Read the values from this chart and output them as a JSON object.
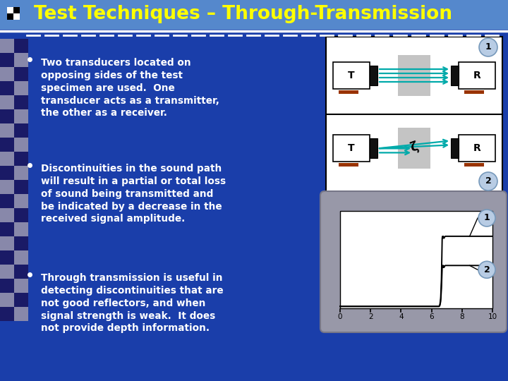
{
  "title": "Test Techniques – Through-Transmission",
  "title_color": "#FFFF00",
  "bg_color": "#1a3eaa",
  "bullet_points": [
    "Two transducers located on\nopposing sides of the test\nspecimen are used.  One\ntransducer acts as a transmitter,\nthe other as a receiver.",
    "Discontinuities in the sound path\nwill result in a partial or total loss\nof sound being transmitted and\nbe indicated by a decrease in the\nreceived signal amplitude.",
    "Through transmission is useful in\ndetecting discontinuities that are\nnot good reflectors, and when\nsignal strength is weak.  It does\nnot provide depth information."
  ],
  "top_bar_color": "#5588cc",
  "white_line_color": "#FFFFFF",
  "checker_dark": "#000066",
  "checker_light": "#8888aa",
  "diagram_bg": "#FFFFFF",
  "specimen_color": "#c0c0c0",
  "transducer_color": "#111111",
  "wire_color": "#882200",
  "arrow_color": "#00aaaa",
  "graph_bg": "#a8a8b8",
  "graph_plot_bg": "#FFFFFF",
  "graph_line_color": "#000000",
  "graph_ticks": [
    0,
    2,
    4,
    6,
    8,
    10
  ],
  "circle_fill": "#b8cce4",
  "circle_border": "#7799bb",
  "dashed_color": "#aaaacc"
}
